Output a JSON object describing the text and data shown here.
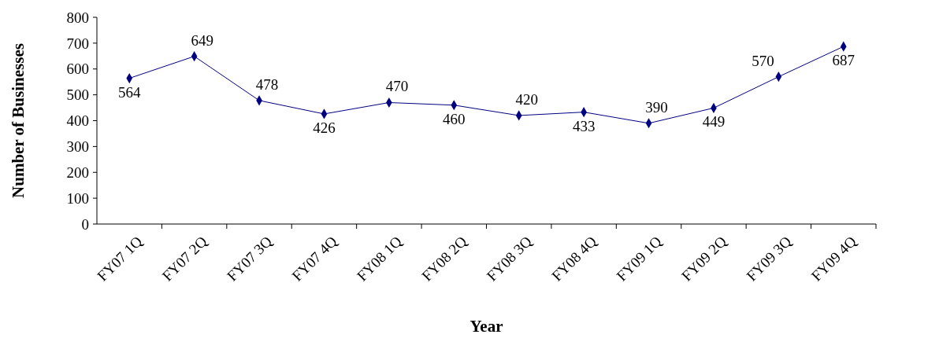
{
  "chart_data": {
    "type": "line",
    "xlabel": "Year",
    "ylabel": "Number of Businesses",
    "categories": [
      "FY07 1Q",
      "FY07 2Q",
      "FY07 3Q",
      "FY07 4Q",
      "FY08 1Q",
      "FY08 2Q",
      "FY08 3Q",
      "FY08 4Q",
      "FY09 1Q",
      "FY09 2Q",
      "FY09 3Q",
      "FY09 4Q"
    ],
    "series": [
      {
        "color": "#000080",
        "values": [
          564,
          649,
          478,
          426,
          470,
          460,
          420,
          433,
          390,
          449,
          570,
          687
        ]
      }
    ],
    "ylim": [
      0,
      800
    ],
    "yticks": [
      0,
      100,
      200,
      300,
      400,
      500,
      600,
      700,
      800
    ],
    "data_labels": true,
    "marker": "diamond",
    "line_style": "solid",
    "grid": false
  }
}
